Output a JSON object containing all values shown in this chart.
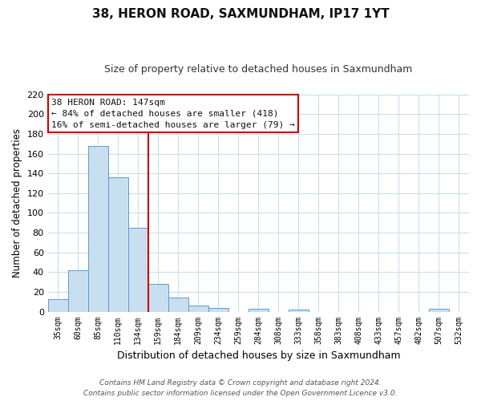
{
  "title": "38, HERON ROAD, SAXMUNDHAM, IP17 1YT",
  "subtitle": "Size of property relative to detached houses in Saxmundham",
  "xlabel": "Distribution of detached houses by size in Saxmundham",
  "ylabel": "Number of detached properties",
  "bar_labels": [
    "35sqm",
    "60sqm",
    "85sqm",
    "110sqm",
    "134sqm",
    "159sqm",
    "184sqm",
    "209sqm",
    "234sqm",
    "259sqm",
    "284sqm",
    "308sqm",
    "333sqm",
    "358sqm",
    "383sqm",
    "408sqm",
    "433sqm",
    "457sqm",
    "482sqm",
    "507sqm",
    "532sqm"
  ],
  "bar_heights": [
    13,
    42,
    168,
    136,
    85,
    28,
    14,
    6,
    4,
    0,
    3,
    0,
    2,
    0,
    0,
    0,
    0,
    0,
    0,
    3,
    0
  ],
  "bar_color": "#c8dff0",
  "bar_edge_color": "#5b9bd5",
  "ylim": [
    0,
    220
  ],
  "yticks": [
    0,
    20,
    40,
    60,
    80,
    100,
    120,
    140,
    160,
    180,
    200,
    220
  ],
  "vline_color": "#cc0000",
  "vline_position": 5.0,
  "annotation_title": "38 HERON ROAD: 147sqm",
  "annotation_line1": "← 84% of detached houses are smaller (418)",
  "annotation_line2": "16% of semi-detached houses are larger (79) →",
  "annotation_box_color": "#ffffff",
  "annotation_box_edge": "#cc0000",
  "footer1": "Contains HM Land Registry data © Crown copyright and database right 2024.",
  "footer2": "Contains public sector information licensed under the Open Government Licence v3.0.",
  "background_color": "#ffffff",
  "grid_color": "#c8dff0"
}
